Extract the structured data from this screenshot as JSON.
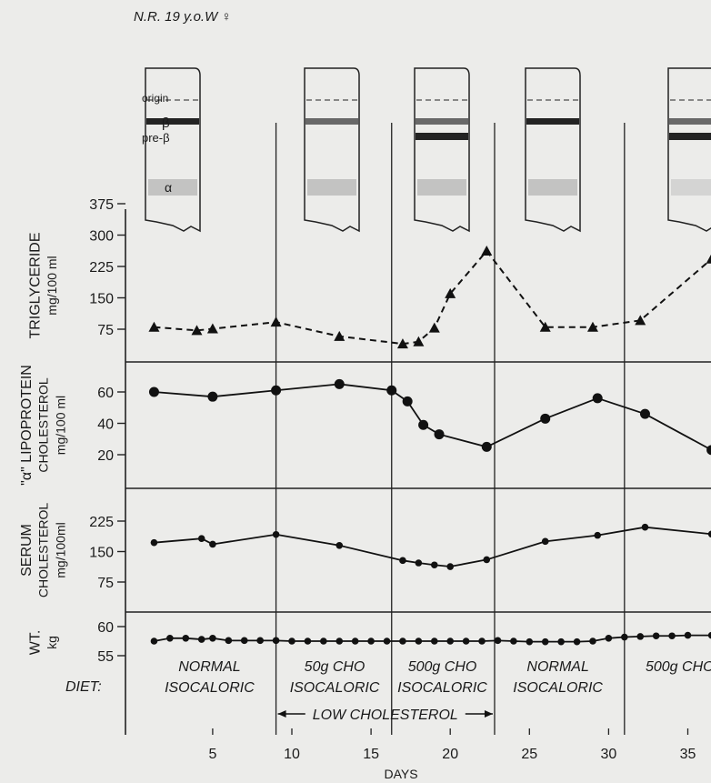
{
  "header": {
    "subject": "N.R. 19 y.o.W ♀"
  },
  "electrophoresis": {
    "labels": {
      "origin": "origin",
      "beta": "β",
      "prebeta": "pre-β",
      "alpha": "α"
    },
    "strips": [
      {
        "day": 2.5,
        "beta": "dark",
        "prebeta": "none",
        "alpha": "light"
      },
      {
        "day": 12.5,
        "beta": "medium",
        "prebeta": "none",
        "alpha": "light"
      },
      {
        "day": 19.5,
        "beta": "medium",
        "prebeta": "dark",
        "alpha": "light"
      },
      {
        "day": 26.5,
        "beta": "dark",
        "prebeta": "none",
        "alpha": "light"
      },
      {
        "day": 35.5,
        "beta": "medium",
        "prebeta": "dark",
        "alpha": "faint"
      }
    ]
  },
  "chart_data": {
    "type": "line",
    "xlabel": "DAYS",
    "xlim": [
      0,
      37
    ],
    "x_ticks": [
      5,
      10,
      15,
      20,
      25,
      30,
      35
    ],
    "phase_boundaries": [
      9,
      16.3,
      22.8,
      31
    ],
    "panels": [
      {
        "id": "triglyceride",
        "ylabel_lines": [
          "TRIGLYCERIDE",
          "mg/100 ml"
        ],
        "y_ticks": [
          75,
          150,
          225,
          300,
          375
        ],
        "ylim": [
          30,
          375
        ],
        "marker": "triangle",
        "line": "dashed",
        "x": [
          1.3,
          4,
          5,
          9,
          13,
          17,
          18,
          19,
          20,
          22.3,
          26,
          29,
          32,
          36.5
        ],
        "y": [
          80,
          72,
          76,
          92,
          58,
          40,
          45,
          78,
          160,
          262,
          80,
          80,
          96,
          243
        ]
      },
      {
        "id": "alpha_lipoprotein",
        "ylabel_lines": [
          "\"α\" LIPOPROTEIN",
          "CHOLESTEROL",
          "mg/100 ml"
        ],
        "y_ticks": [
          20,
          40,
          60
        ],
        "ylim": [
          5,
          78
        ],
        "marker": "circle",
        "line": "solid",
        "x": [
          1.3,
          5,
          9,
          13,
          16.3,
          17.3,
          18.3,
          19.3,
          22.3,
          26,
          29.3,
          32.3,
          36.5
        ],
        "y": [
          60,
          57,
          61,
          65,
          61,
          54,
          39,
          33,
          25,
          43,
          56,
          46,
          23
        ]
      },
      {
        "id": "serum_cholesterol",
        "ylabel_lines": [
          "SERUM",
          "CHOLESTEROL",
          "mg/100ml"
        ],
        "y_ticks": [
          75,
          150,
          225
        ],
        "ylim": [
          20,
          270
        ],
        "marker": "dot",
        "line": "solid",
        "x": [
          1.3,
          4.3,
          5,
          9,
          13,
          17,
          18,
          19,
          20,
          22.3,
          26,
          29.3,
          32.3,
          36.5
        ],
        "y": [
          172,
          182,
          168,
          192,
          165,
          128,
          122,
          117,
          113,
          130,
          175,
          190,
          210,
          193
        ]
      },
      {
        "id": "weight",
        "ylabel_lines": [
          "WT.",
          "kg"
        ],
        "y_ticks": [
          55,
          60
        ],
        "ylim": [
          50,
          63
        ],
        "marker": "dot",
        "line": "solid",
        "x": [
          1.3,
          2.3,
          3.3,
          4.3,
          5,
          6,
          7,
          8,
          9,
          10,
          11,
          12,
          13,
          14,
          15,
          16,
          17,
          18,
          19,
          20,
          21,
          22,
          23,
          24,
          25,
          26,
          27,
          28,
          29,
          30,
          31,
          32,
          33,
          34,
          35,
          36.5
        ],
        "y": [
          57.5,
          58,
          58,
          57.8,
          58,
          57.6,
          57.6,
          57.6,
          57.6,
          57.5,
          57.5,
          57.5,
          57.5,
          57.5,
          57.5,
          57.5,
          57.5,
          57.5,
          57.5,
          57.5,
          57.5,
          57.5,
          57.6,
          57.5,
          57.4,
          57.4,
          57.4,
          57.4,
          57.5,
          58,
          58.2,
          58.3,
          58.4,
          58.4,
          58.5,
          58.5
        ]
      }
    ]
  },
  "diet": {
    "label": "DIET:",
    "phases": [
      {
        "line1": "NORMAL",
        "line2": "ISOCALORIC",
        "center": 4.8
      },
      {
        "line1": "50g  CHO",
        "line2": "ISOCALORIC",
        "center": 12.7
      },
      {
        "line1": "500g  CHO",
        "line2": "ISOCALORIC",
        "center": 19.5
      },
      {
        "line1": "NORMAL",
        "line2": "ISOCALORIC",
        "center": 26.8
      },
      {
        "line1": "500g  CHO",
        "line2": "",
        "center": 34.5
      }
    ],
    "low_cholesterol": {
      "label": "LOW CHOLESTEROL",
      "from": 9,
      "to": 22.8
    }
  }
}
